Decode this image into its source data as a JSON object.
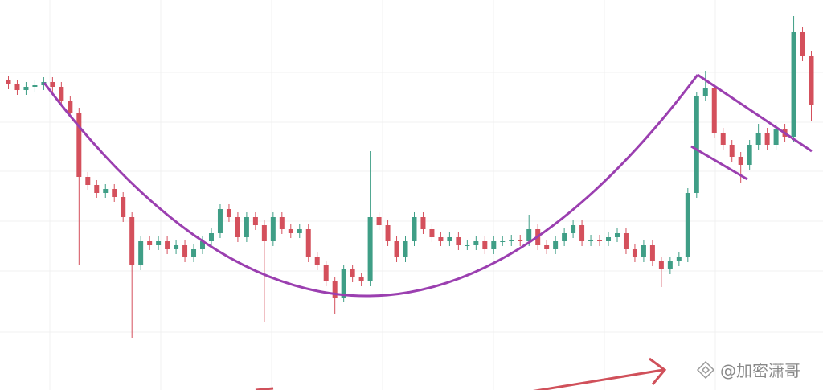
{
  "chart_data": {
    "type": "candlestick",
    "ylim": [
      0,
      485
    ],
    "up_color": "#3f9e86",
    "down_color": "#d4505c",
    "open": [
      385,
      380,
      373,
      377,
      379,
      383,
      377,
      360,
      345,
      265,
      255,
      245,
      250,
      240,
      215,
      155,
      185,
      180,
      185,
      175,
      180,
      165,
      175,
      185,
      195,
      225,
      215,
      190,
      215,
      205,
      185,
      215,
      200,
      195,
      200,
      165,
      155,
      135,
      115,
      150,
      140,
      135,
      215,
      205,
      185,
      165,
      185,
      215,
      200,
      190,
      185,
      190,
      180,
      180,
      185,
      175,
      185,
      185,
      187,
      185,
      200,
      180,
      175,
      185,
      195,
      205,
      185,
      187,
      185,
      190,
      195,
      175,
      165,
      180,
      160,
      150,
      160,
      165,
      245,
      365,
      375,
      320,
      305,
      290,
      280,
      305,
      320,
      305,
      325,
      315,
      445,
      415
    ],
    "high": [
      391,
      386,
      383,
      385,
      389,
      389,
      383,
      366,
      351,
      271,
      261,
      256,
      256,
      246,
      221,
      191,
      191,
      191,
      191,
      186,
      186,
      181,
      191,
      201,
      231,
      231,
      221,
      221,
      221,
      211,
      221,
      221,
      206,
      206,
      206,
      171,
      161,
      141,
      156,
      156,
      146,
      297,
      221,
      211,
      191,
      191,
      221,
      221,
      206,
      196,
      196,
      196,
      186,
      191,
      191,
      191,
      191,
      193,
      193,
      218,
      206,
      186,
      191,
      201,
      211,
      211,
      193,
      193,
      196,
      201,
      201,
      181,
      186,
      186,
      166,
      166,
      171,
      251,
      371,
      397,
      381,
      326,
      311,
      296,
      311,
      331,
      326,
      331,
      331,
      465,
      451,
      421
    ],
    "low": [
      374,
      367,
      367,
      371,
      373,
      371,
      354,
      339,
      155,
      249,
      239,
      239,
      234,
      209,
      65,
      149,
      174,
      174,
      169,
      169,
      159,
      159,
      169,
      179,
      189,
      209,
      184,
      184,
      199,
      85,
      179,
      194,
      189,
      189,
      159,
      149,
      129,
      95,
      109,
      134,
      129,
      129,
      199,
      179,
      159,
      159,
      179,
      194,
      184,
      179,
      179,
      174,
      174,
      174,
      169,
      169,
      179,
      179,
      179,
      179,
      174,
      169,
      169,
      179,
      189,
      179,
      179,
      179,
      179,
      184,
      169,
      159,
      159,
      154,
      128,
      144,
      154,
      159,
      239,
      359,
      314,
      299,
      284,
      258,
      274,
      299,
      299,
      299,
      309,
      309,
      409,
      335
    ],
    "close": [
      380,
      373,
      377,
      379,
      383,
      377,
      360,
      345,
      265,
      255,
      245,
      250,
      240,
      215,
      155,
      185,
      180,
      185,
      175,
      180,
      165,
      175,
      185,
      195,
      225,
      215,
      190,
      215,
      205,
      185,
      215,
      200,
      195,
      200,
      165,
      155,
      135,
      115,
      150,
      140,
      135,
      215,
      205,
      185,
      165,
      185,
      215,
      200,
      190,
      185,
      190,
      180,
      180,
      185,
      175,
      185,
      185,
      187,
      185,
      200,
      180,
      175,
      185,
      195,
      205,
      185,
      187,
      185,
      190,
      195,
      175,
      165,
      180,
      160,
      150,
      160,
      165,
      245,
      365,
      375,
      320,
      305,
      290,
      280,
      305,
      320,
      305,
      325,
      315,
      445,
      415,
      355
    ],
    "watermark": "@加密潇哥"
  }
}
